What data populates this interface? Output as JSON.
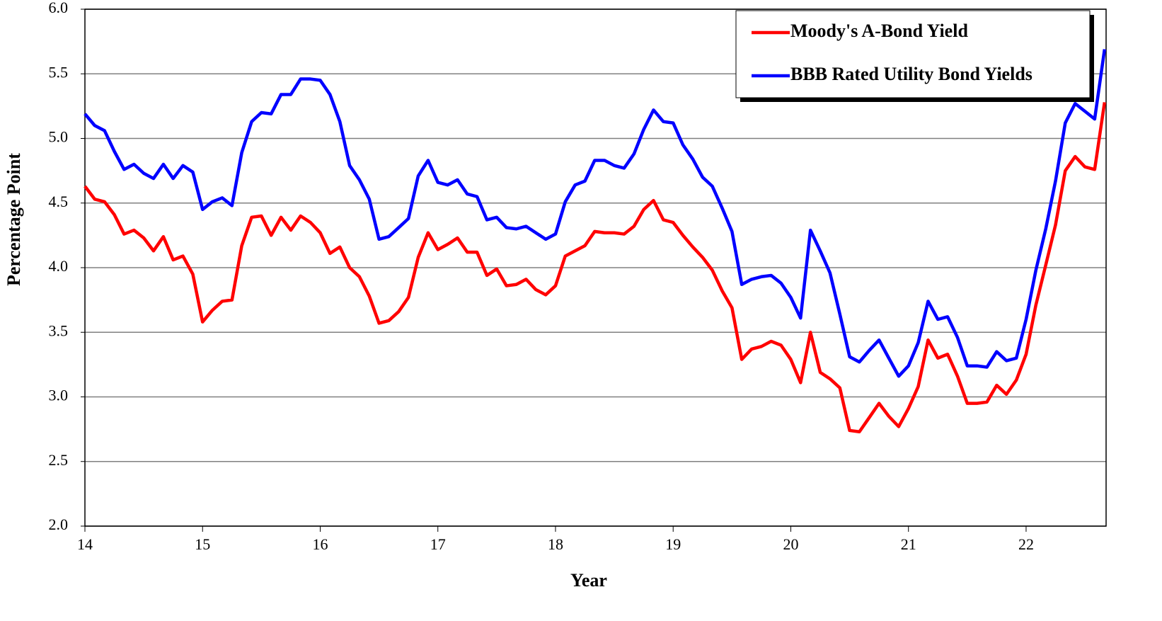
{
  "chart_data": {
    "type": "line",
    "x_label": "Year",
    "y_label": "Percentage Point",
    "x": [
      14,
      14.083,
      14.167,
      14.25,
      14.333,
      14.417,
      14.5,
      14.583,
      14.667,
      14.75,
      14.833,
      14.917,
      15,
      15.083,
      15.167,
      15.25,
      15.333,
      15.417,
      15.5,
      15.583,
      15.667,
      15.75,
      15.833,
      15.917,
      16,
      16.083,
      16.167,
      16.25,
      16.333,
      16.417,
      16.5,
      16.583,
      16.667,
      16.75,
      16.833,
      16.917,
      17,
      17.083,
      17.167,
      17.25,
      17.333,
      17.417,
      17.5,
      17.583,
      17.667,
      17.75,
      17.833,
      17.917,
      18,
      18.083,
      18.167,
      18.25,
      18.333,
      18.417,
      18.5,
      18.583,
      18.667,
      18.75,
      18.833,
      18.917,
      19,
      19.083,
      19.167,
      19.25,
      19.333,
      19.417,
      19.5,
      19.583,
      19.667,
      19.75,
      19.833,
      19.917,
      20,
      20.083,
      20.167,
      20.25,
      20.333,
      20.417,
      20.5,
      20.583,
      20.667,
      20.75,
      20.833,
      20.917,
      21,
      21.083,
      21.167,
      21.25,
      21.333,
      21.417,
      21.5,
      21.583,
      21.667,
      21.75,
      21.833,
      21.917,
      22,
      22.083,
      22.167,
      22.25,
      22.333,
      22.417,
      22.5,
      22.583,
      22.667
    ],
    "series": [
      {
        "name": "Moody's A-Bond Yield",
        "color": "#ff0000",
        "values": [
          4.63,
          4.53,
          4.51,
          4.41,
          4.26,
          4.29,
          4.23,
          4.13,
          4.24,
          4.06,
          4.09,
          3.95,
          3.58,
          3.67,
          3.74,
          3.75,
          4.17,
          4.39,
          4.4,
          4.25,
          4.39,
          4.29,
          4.4,
          4.35,
          4.27,
          4.11,
          4.16,
          4.0,
          3.93,
          3.78,
          3.57,
          3.59,
          3.66,
          3.77,
          4.08,
          4.27,
          4.14,
          4.18,
          4.23,
          4.12,
          4.12,
          3.94,
          3.99,
          3.86,
          3.87,
          3.91,
          3.83,
          3.79,
          3.86,
          4.09,
          4.13,
          4.17,
          4.28,
          4.27,
          4.27,
          4.26,
          4.32,
          4.45,
          4.52,
          4.37,
          4.35,
          4.25,
          4.16,
          4.08,
          3.98,
          3.82,
          3.69,
          3.29,
          3.37,
          3.39,
          3.43,
          3.4,
          3.29,
          3.11,
          3.5,
          3.19,
          3.14,
          3.07,
          2.74,
          2.73,
          2.84,
          2.95,
          2.85,
          2.77,
          2.91,
          3.08,
          3.44,
          3.3,
          3.33,
          3.16,
          2.95,
          2.95,
          2.96,
          3.09,
          3.02,
          3.13,
          3.33,
          3.71,
          4.02,
          4.33,
          4.75,
          4.86,
          4.78,
          4.76,
          5.28
        ]
      },
      {
        "name": "BBB Rated Utility Bond Yields",
        "color": "#0000ff",
        "values": [
          5.19,
          5.1,
          5.06,
          4.9,
          4.76,
          4.8,
          4.73,
          4.69,
          4.8,
          4.69,
          4.79,
          4.74,
          4.45,
          4.51,
          4.54,
          4.48,
          4.89,
          5.13,
          5.2,
          5.19,
          5.34,
          5.34,
          5.46,
          5.46,
          5.45,
          5.34,
          5.13,
          4.79,
          4.68,
          4.53,
          4.22,
          4.24,
          4.31,
          4.38,
          4.71,
          4.83,
          4.66,
          4.64,
          4.68,
          4.57,
          4.55,
          4.37,
          4.39,
          4.31,
          4.3,
          4.32,
          4.27,
          4.22,
          4.26,
          4.51,
          4.64,
          4.67,
          4.83,
          4.83,
          4.79,
          4.77,
          4.88,
          5.07,
          5.22,
          5.13,
          5.12,
          4.95,
          4.84,
          4.7,
          4.63,
          4.46,
          4.28,
          3.87,
          3.91,
          3.93,
          3.94,
          3.88,
          3.77,
          3.61,
          4.29,
          4.13,
          3.96,
          3.64,
          3.31,
          3.27,
          3.36,
          3.44,
          3.3,
          3.16,
          3.24,
          3.42,
          3.74,
          3.6,
          3.62,
          3.46,
          3.24,
          3.24,
          3.23,
          3.35,
          3.28,
          3.3,
          3.6,
          3.98,
          4.3,
          4.67,
          5.12,
          5.27,
          5.21,
          5.15,
          5.69
        ]
      }
    ],
    "xlim": [
      14,
      22.68
    ],
    "xticks": [
      14,
      15,
      16,
      17,
      18,
      19,
      20,
      21,
      22
    ],
    "ylim": [
      2,
      6
    ],
    "yticks": [
      {
        "value": 2,
        "label": "2.0"
      },
      2.5,
      {
        "value": 3,
        "label": "3.0"
      },
      3.5,
      {
        "value": 4,
        "label": "4.0"
      },
      4.5,
      {
        "value": 5,
        "label": "5.0"
      },
      5.5,
      {
        "value": 6,
        "label": "6.0"
      }
    ],
    "grid": true,
    "legend": "upper right"
  }
}
